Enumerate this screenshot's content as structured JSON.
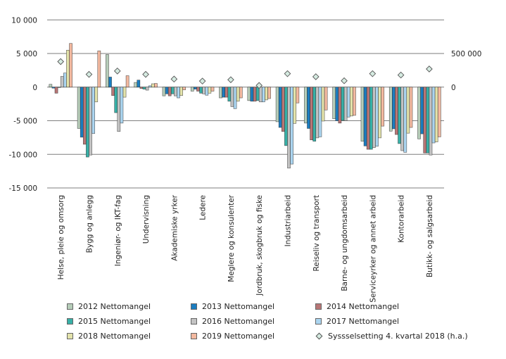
{
  "chart_data": {
    "type": "bar",
    "title": "",
    "xlabel": "",
    "ylabel": "",
    "ylim": [
      -15000,
      10000
    ],
    "yticks": [
      "10 000",
      "5 000",
      "0",
      "-5 000",
      "-10 000",
      "-15 000"
    ],
    "ytick_values": [
      10000,
      5000,
      0,
      -5000,
      -10000,
      -15000
    ],
    "y2lim": [
      -1500000,
      1000000
    ],
    "y2ticks": [
      "500 000",
      "0"
    ],
    "y2tick_values": [
      500000,
      0
    ],
    "grid": true,
    "legend_position": "bottom",
    "categories": [
      "Helse, pleie og omsorg",
      "Bygg og anlegg",
      "Ingeniør- og IKT-fag",
      "Undervisning",
      "Akademiske yrker",
      "Ledere",
      "Meglere og konsulenter",
      "Jordbruk, skogbruk og fiske",
      "Industriarbeid",
      "Reiseliv og transport",
      "Barne- og ungdomsarbeid",
      "Serviceyrker og annet arbeid",
      "Kontorarbeid",
      "Butikk- og salgsarbeid"
    ],
    "series": [
      {
        "name": "2012 Nettomangel",
        "color": "#b6cdb9",
        "values": [
          420,
          -6150,
          4850,
          700,
          -1300,
          -600,
          -1600,
          -2000,
          -5150,
          -5350,
          -4700,
          -8050,
          -6550,
          -7700
        ]
      },
      {
        "name": "2013 Nettomangel",
        "color": "#1b7dc0",
        "values": [
          -150,
          -7450,
          1500,
          1050,
          -1000,
          -300,
          -1500,
          -2100,
          -6000,
          -6150,
          -5000,
          -8750,
          -6200,
          -6950
        ]
      },
      {
        "name": "2014 Nettomangel",
        "color": "#b87676",
        "values": [
          -900,
          -8500,
          -1250,
          -200,
          -1300,
          -600,
          -1500,
          -2100,
          -6600,
          -7850,
          -5350,
          -9250,
          -7050,
          -9800
        ]
      },
      {
        "name": "2015 Nettomangel",
        "color": "#37b0a7",
        "values": [
          -50,
          -10400,
          -3800,
          -300,
          -1000,
          -900,
          -2100,
          -2000,
          -8700,
          -8050,
          -4950,
          -9250,
          -8400,
          -9800
        ]
      },
      {
        "name": "2016 Nettomangel",
        "color": "#c3c3c3",
        "values": [
          1600,
          -10100,
          -6600,
          -450,
          -1300,
          -1000,
          -2900,
          -2200,
          -12050,
          -7550,
          -5000,
          -9000,
          -9450,
          -10100
        ]
      },
      {
        "name": "2017 Nettomangel",
        "color": "#abd5f0",
        "values": [
          2100,
          -6900,
          -5350,
          200,
          -1600,
          -1200,
          -3200,
          -2200,
          -11450,
          -7400,
          -4450,
          -8800,
          -9700,
          -8300
        ]
      },
      {
        "name": "2018 Nettomangel",
        "color": "#e3e3ab",
        "values": [
          5500,
          -2200,
          -1500,
          500,
          -1250,
          -900,
          -2100,
          -1900,
          -5400,
          -5050,
          -4300,
          -7550,
          -6850,
          -8150
        ]
      },
      {
        "name": "2019 Nettomangel",
        "color": "#f3b9a0",
        "values": [
          6500,
          5400,
          1700,
          550,
          -400,
          -600,
          -1600,
          -1700,
          -2350,
          -3400,
          -4200,
          -5800,
          -6000,
          -7400
        ]
      }
    ],
    "secondary_series": {
      "name": "Syssselsetting 4. kvartal 2018 (h.a.)",
      "type": "scatter",
      "marker": "diamond",
      "axis": "right",
      "color": "#d5ebe1",
      "values": [
        380000,
        190000,
        240000,
        190000,
        120000,
        90000,
        110000,
        25000,
        200000,
        155000,
        95000,
        200000,
        180000,
        270000
      ]
    }
  },
  "legend": [
    {
      "label": "2012 Nettomangel",
      "color": "#b6cdb9",
      "kind": "box"
    },
    {
      "label": "2013 Nettomangel",
      "color": "#1b7dc0",
      "kind": "box"
    },
    {
      "label": "2014 Nettomangel",
      "color": "#b87676",
      "kind": "box"
    },
    {
      "label": "2015 Nettomangel",
      "color": "#37b0a7",
      "kind": "box"
    },
    {
      "label": "2016 Nettomangel",
      "color": "#c3c3c3",
      "kind": "box"
    },
    {
      "label": "2017 Nettomangel",
      "color": "#abd5f0",
      "kind": "box"
    },
    {
      "label": "2018 Nettomangel",
      "color": "#e3e3ab",
      "kind": "box"
    },
    {
      "label": "2019 Nettomangel",
      "color": "#f3b9a0",
      "kind": "box"
    },
    {
      "label": "Syssselsetting 4. kvartal 2018 (h.a.)",
      "color": "#d5ebe1",
      "kind": "diamond"
    }
  ]
}
